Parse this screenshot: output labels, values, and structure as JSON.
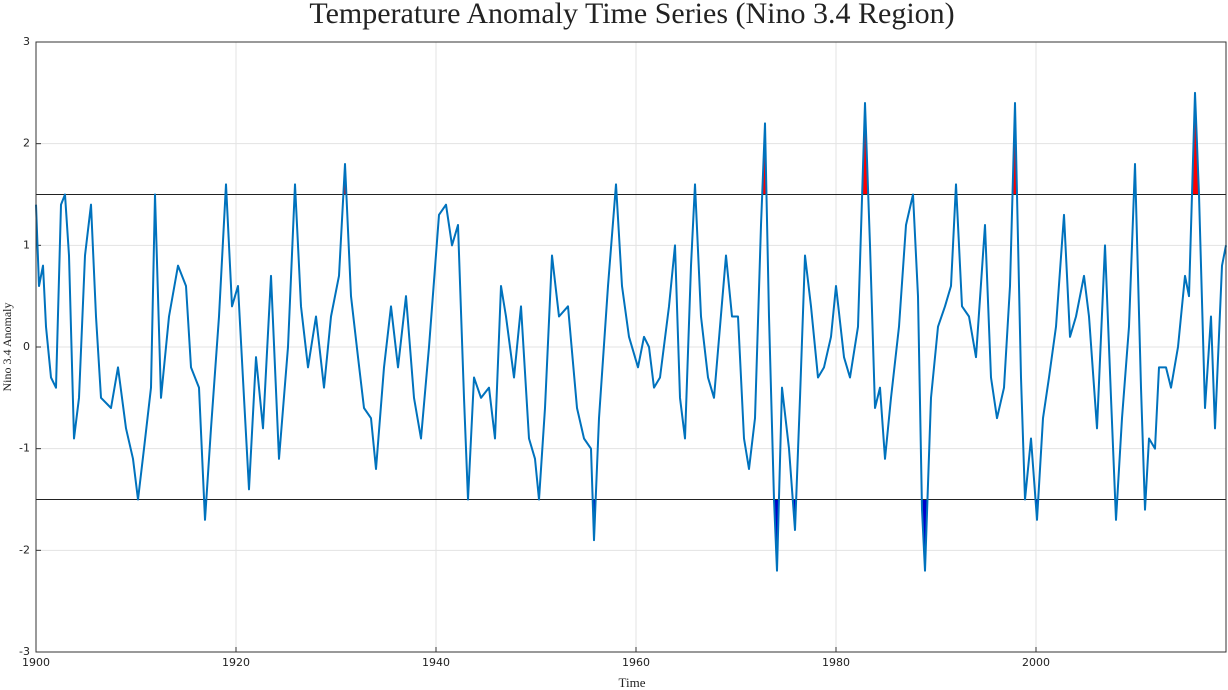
{
  "chart_data": {
    "type": "line",
    "title": "Temperature Anomaly Time Series (Nino 3.4 Region)",
    "x_label": "Time",
    "y_label": "Nino 3.4 Anomaly",
    "color": "#0072bd",
    "fill_above": "#ff0000",
    "fill_below": "#0000cc",
    "grid": true,
    "hlines": [
      1.5,
      -1.5
    ],
    "xlim": [
      1900,
      2019
    ],
    "xticks": [
      1900,
      1920,
      1940,
      1960,
      1980,
      2000
    ],
    "ylim": [
      -3,
      3
    ],
    "yticks": [
      -3,
      -2,
      -1,
      0,
      1,
      2,
      3
    ],
    "x": [
      1900,
      1900.3,
      1900.7,
      1901,
      1901.5,
      1902,
      1902.5,
      1902.9,
      1903.3,
      1903.8,
      1904.3,
      1904.9,
      1905.5,
      1906,
      1906.5,
      1907.5,
      1908.2,
      1909,
      1909.7,
      1910.2,
      1910.8,
      1911.5,
      1911.9,
      1912.5,
      1913.3,
      1914.2,
      1915,
      1915.5,
      1916.3,
      1916.9,
      1917.5,
      1918.3,
      1919,
      1919.6,
      1920.2,
      1920.8,
      1921.3,
      1922,
      1922.7,
      1923.5,
      1924.3,
      1925.2,
      1925.9,
      1926.5,
      1927.2,
      1928,
      1928.8,
      1929.5,
      1930.3,
      1930.9,
      1931.5,
      1932.2,
      1932.8,
      1933.5,
      1934,
      1934.8,
      1935.5,
      1936.2,
      1937,
      1937.8,
      1938.5,
      1939.3,
      1940.3,
      1941,
      1941.6,
      1942.2,
      1942.8,
      1943.2,
      1943.8,
      1944.5,
      1945.3,
      1945.9,
      1946.5,
      1947,
      1947.8,
      1948.5,
      1949.3,
      1949.9,
      1950.3,
      1950.9,
      1951.6,
      1952.3,
      1953.2,
      1954.1,
      1954.8,
      1955.5,
      1955.8,
      1956.3,
      1957.2,
      1958,
      1958.6,
      1959.3,
      1960.2,
      1960.8,
      1961.3,
      1961.8,
      1962.4,
      1963.3,
      1963.9,
      1964.4,
      1964.9,
      1965.5,
      1965.9,
      1966.5,
      1967.2,
      1967.8,
      1968.4,
      1969,
      1969.6,
      1970.2,
      1970.8,
      1971.3,
      1971.9,
      1972.5,
      1972.9,
      1973.3,
      1973.8,
      1974.1,
      1974.6,
      1975.3,
      1975.9,
      1976.4,
      1976.9,
      1977.5,
      1978.2,
      1978.8,
      1979.5,
      1980,
      1980.8,
      1981.4,
      1982.2,
      1982.9,
      1983.4,
      1983.9,
      1984.4,
      1984.9,
      1985.5,
      1986.3,
      1987,
      1987.7,
      1988.2,
      1988.6,
      1988.9,
      1989.5,
      1990.2,
      1990.9,
      1991.5,
      1992,
      1992.6,
      1993.3,
      1994,
      1994.9,
      1995.5,
      1996.1,
      1996.8,
      1997.4,
      1997.9,
      1998.5,
      1998.9,
      1999.5,
      2000.1,
      2000.7,
      2001.3,
      2002,
      2002.8,
      2003.4,
      2004,
      2004.8,
      2005.3,
      2006.1,
      2006.9,
      2007.5,
      2008,
      2008.6,
      2009.3,
      2009.9,
      2010.5,
      2010.9,
      2011.3,
      2011.9,
      2012.3,
      2013,
      2013.5,
      2014.2,
      2014.9,
      2015.3,
      2015.9,
      2016.3,
      2016.9,
      2017.5,
      2017.9,
      2018.6,
      2019
    ],
    "values": [
      1.4,
      0.6,
      0.8,
      0.2,
      -0.3,
      -0.4,
      1.4,
      1.5,
      0.9,
      -0.9,
      -0.5,
      0.9,
      1.4,
      0.3,
      -0.5,
      -0.6,
      -0.2,
      -0.8,
      -1.1,
      -1.5,
      -1.0,
      -0.4,
      1.5,
      -0.5,
      0.3,
      0.8,
      0.6,
      -0.2,
      -0.4,
      -1.7,
      -0.8,
      0.3,
      1.6,
      0.4,
      0.6,
      -0.5,
      -1.4,
      -0.1,
      -0.8,
      0.7,
      -1.1,
      0.0,
      1.6,
      0.4,
      -0.2,
      0.3,
      -0.4,
      0.3,
      0.7,
      1.8,
      0.5,
      -0.1,
      -0.6,
      -0.7,
      -1.2,
      -0.2,
      0.4,
      -0.2,
      0.5,
      -0.5,
      -0.9,
      0.0,
      1.3,
      1.4,
      1.0,
      1.2,
      -0.5,
      -1.5,
      -0.3,
      -0.5,
      -0.4,
      -0.9,
      0.6,
      0.3,
      -0.3,
      0.4,
      -0.9,
      -1.1,
      -1.5,
      -0.6,
      0.9,
      0.3,
      0.4,
      -0.6,
      -0.9,
      -1.0,
      -1.9,
      -0.7,
      0.6,
      1.6,
      0.6,
      0.1,
      -0.2,
      0.1,
      0.0,
      -0.4,
      -0.3,
      0.4,
      1.0,
      -0.5,
      -0.9,
      0.8,
      1.6,
      0.3,
      -0.3,
      -0.5,
      0.2,
      0.9,
      0.3,
      0.3,
      -0.9,
      -1.2,
      -0.7,
      1.2,
      2.2,
      0.3,
      -1.5,
      -2.2,
      -0.4,
      -1.0,
      -1.8,
      -0.5,
      0.9,
      0.4,
      -0.3,
      -0.2,
      0.1,
      0.6,
      -0.1,
      -0.3,
      0.2,
      2.4,
      1.0,
      -0.6,
      -0.4,
      -1.1,
      -0.5,
      0.2,
      1.2,
      1.5,
      0.5,
      -1.6,
      -2.2,
      -0.5,
      0.2,
      0.4,
      0.6,
      1.6,
      0.4,
      0.3,
      -0.1,
      1.2,
      -0.3,
      -0.7,
      -0.4,
      0.6,
      2.4,
      -0.3,
      -1.5,
      -0.9,
      -1.7,
      -0.7,
      -0.3,
      0.2,
      1.3,
      0.1,
      0.3,
      0.7,
      0.3,
      -0.8,
      1.0,
      -0.5,
      -1.7,
      -0.7,
      0.2,
      1.8,
      -0.4,
      -1.6,
      -0.9,
      -1.0,
      -0.2,
      -0.2,
      -0.4,
      0.0,
      0.7,
      0.5,
      2.5,
      1.5,
      -0.6,
      0.3,
      -0.8,
      0.8,
      1.0
    ]
  }
}
